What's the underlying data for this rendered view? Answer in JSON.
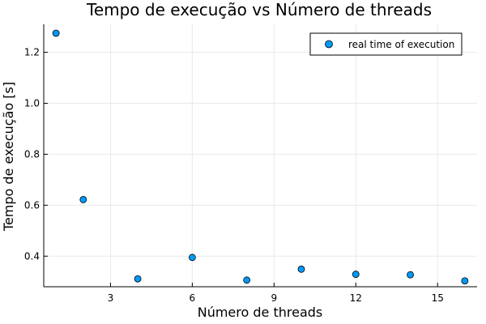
{
  "chart_data": {
    "type": "scatter",
    "title": "Tempo de execução vs Número de threads",
    "xlabel": "Número de threads",
    "ylabel": "Tempo de execução [s]",
    "xlim": [
      0.55,
      16.45
    ],
    "ylim": [
      0.28,
      1.31
    ],
    "xticks": [
      3,
      6,
      9,
      12,
      15
    ],
    "yticks": [
      0.4,
      0.6,
      0.8,
      1.0,
      1.2
    ],
    "xtick_labels": [
      "3",
      "6",
      "9",
      "12",
      "15"
    ],
    "ytick_labels": [
      "0.4",
      "0.6",
      "0.8",
      "1.0",
      "1.2"
    ],
    "grid": true,
    "legend_position": "top-right",
    "series": [
      {
        "name": "real time of execution",
        "color": "#009af9",
        "x": [
          1,
          2,
          4,
          6,
          8,
          10,
          12,
          14,
          16
        ],
        "y": [
          1.275,
          0.622,
          0.311,
          0.395,
          0.306,
          0.349,
          0.329,
          0.327,
          0.303
        ]
      }
    ]
  }
}
